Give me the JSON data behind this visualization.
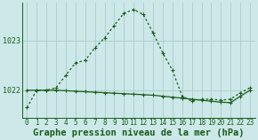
{
  "background_color": "#cce8e8",
  "plot_bg_color": "#cce8e8",
  "line_color": "#1a5c1a",
  "grid_color": "#aacccc",
  "xlabel": "Graphe pression niveau de la mer (hPa)",
  "xlabel_fontsize": 7.5,
  "ylabel_ticks": [
    1022,
    1023
  ],
  "xlim": [
    -0.5,
    23.5
  ],
  "ylim": [
    1021.45,
    1023.75
  ],
  "line1_x": [
    0,
    1,
    2,
    3,
    4,
    5,
    6,
    7,
    8,
    9,
    10,
    11,
    12,
    13,
    14,
    15,
    16,
    17,
    18,
    19,
    20,
    21,
    22,
    23
  ],
  "line1_y": [
    1021.65,
    1022.0,
    1022.0,
    1022.05,
    1022.3,
    1022.55,
    1022.6,
    1022.85,
    1023.05,
    1023.3,
    1023.55,
    1023.62,
    1023.52,
    1023.15,
    1022.75,
    1022.4,
    1021.88,
    1021.78,
    1021.82,
    1021.82,
    1021.8,
    1021.82,
    1021.95,
    1022.05
  ],
  "line2_x": [
    0,
    1,
    2,
    3,
    4,
    5,
    6,
    7,
    8,
    9,
    10,
    11,
    12,
    13,
    14,
    15,
    16,
    17,
    18,
    19,
    20,
    21,
    22,
    23
  ],
  "line2_y": [
    1022.0,
    1022.0,
    1022.0,
    1022.0,
    1021.99,
    1021.98,
    1021.97,
    1021.96,
    1021.95,
    1021.94,
    1021.93,
    1021.92,
    1021.91,
    1021.9,
    1021.88,
    1021.86,
    1021.84,
    1021.82,
    1021.8,
    1021.78,
    1021.76,
    1021.75,
    1021.88,
    1022.0
  ],
  "tick_fontsize": 6,
  "marker_size": 2.5,
  "linewidth": 0.9,
  "xtick_labels": [
    "0",
    "1",
    "2",
    "3",
    "4",
    "5",
    "6",
    "7",
    "8",
    "9",
    "10",
    "11",
    "12",
    "13",
    "14",
    "15",
    "16",
    "17",
    "18",
    "19",
    "20",
    "21",
    "22",
    "23"
  ]
}
